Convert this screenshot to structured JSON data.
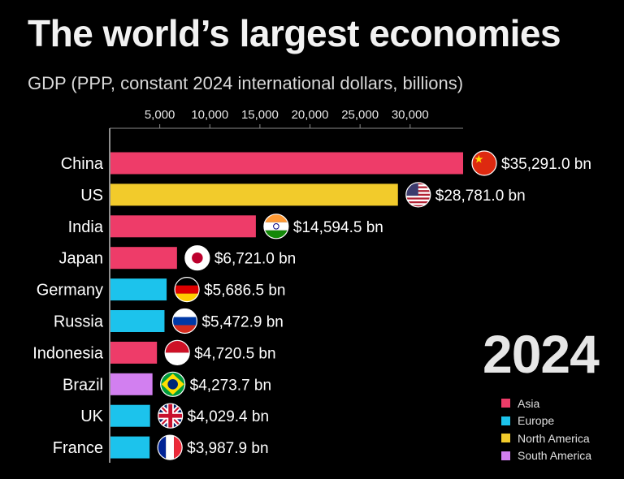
{
  "header": {
    "title": "The world’s largest economies",
    "subtitle": "GDP (PPP, constant 2024 international dollars, billions)"
  },
  "year": "2024",
  "colors": {
    "Asia": "#ee3c69",
    "Europe": "#1cc3ec",
    "North America": "#f2cb2b",
    "South America": "#d27ff0"
  },
  "legend": [
    {
      "label": "Asia",
      "color": "#ee3c69"
    },
    {
      "label": "Europe",
      "color": "#1cc3ec"
    },
    {
      "label": "North America",
      "color": "#f2cb2b"
    },
    {
      "label": "South America",
      "color": "#d27ff0"
    }
  ],
  "chart_data": {
    "type": "bar",
    "orientation": "horizontal",
    "title": "The world’s largest economies",
    "subtitle": "GDP (PPP, constant 2024 international dollars, billions)",
    "categories": [
      "China",
      "US",
      "India",
      "Japan",
      "Germany",
      "Russia",
      "Indonesia",
      "Brazil",
      "UK",
      "France"
    ],
    "values": [
      35291.0,
      28781.0,
      14594.5,
      6721.0,
      5686.5,
      5472.9,
      4720.5,
      4273.7,
      4029.4,
      3987.9
    ],
    "value_labels": [
      "$35,291.0 bn",
      "$28,781.0 bn",
      "$14,594.5 bn",
      "$6,721.0 bn",
      "$5,686.5 bn",
      "$5,472.9 bn",
      "$4,720.5 bn",
      "$4,273.7 bn",
      "$4,029.4 bn",
      "$3,987.9 bn"
    ],
    "regions": [
      "Asia",
      "North America",
      "Asia",
      "Asia",
      "Europe",
      "Europe",
      "Asia",
      "South America",
      "Europe",
      "Europe"
    ],
    "flag_icons": [
      "china-flag-icon",
      "us-flag-icon",
      "india-flag-icon",
      "japan-flag-icon",
      "germany-flag-icon",
      "russia-flag-icon",
      "indonesia-flag-icon",
      "brazil-flag-icon",
      "uk-flag-icon",
      "france-flag-icon"
    ],
    "x_ticks": [
      5000,
      10000,
      15000,
      20000,
      25000,
      30000
    ],
    "x_tick_labels": [
      "5,000",
      "10,000",
      "15,000",
      "20,000",
      "25,000",
      "30,000"
    ],
    "xlim": [
      0,
      35291.0
    ],
    "xlabel": "",
    "ylabel": "",
    "legend_position": "bottom-right"
  }
}
